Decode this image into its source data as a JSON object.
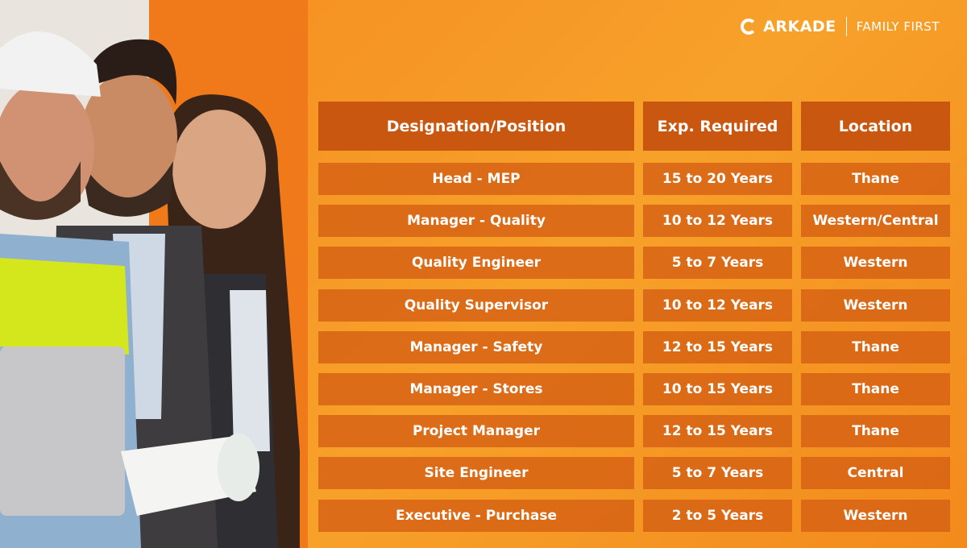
{
  "header": {
    "brand": "ARKADE",
    "tagline": "FAMILY FIRST"
  },
  "table": {
    "columns": [
      "Designation/Position",
      "Exp. Required",
      "Location"
    ],
    "rows": [
      [
        "Head - MEP",
        "15 to 20 Years",
        "Thane"
      ],
      [
        "Manager - Quality",
        "10 to 12 Years",
        "Western/Central"
      ],
      [
        "Quality Engineer",
        "5 to 7 Years",
        "Western"
      ],
      [
        "Quality Supervisor",
        "10 to 12 Years",
        "Western"
      ],
      [
        "Manager - Safety",
        "12 to 15 Years",
        "Thane"
      ],
      [
        "Manager - Stores",
        "10 to 15 Years",
        "Thane"
      ],
      [
        "Project Manager",
        "12 to 15 Years",
        "Thane"
      ],
      [
        "Site Engineer",
        "5 to 7 Years",
        "Central"
      ],
      [
        "Executive - Purchase",
        "2 to 5 Years",
        "Western"
      ]
    ]
  }
}
